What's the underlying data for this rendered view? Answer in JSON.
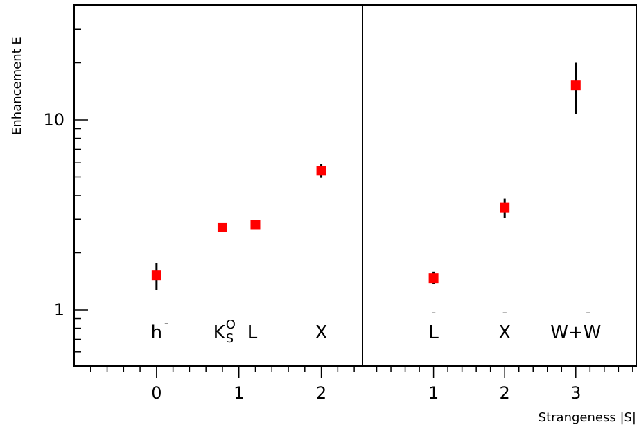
{
  "chart_data": {
    "type": "scatter",
    "title": "",
    "xlabel": "Strangeness |S|",
    "ylabel": "Enhancement E",
    "y_scale": "log",
    "ylim": [
      0.5,
      45
    ],
    "y_ticks": [
      "1",
      "10"
    ],
    "grid": false,
    "marker_color": "#ff0000",
    "errorbar_color": "#000000",
    "panels": [
      {
        "name": "particles",
        "xlim": [
          -1,
          2.5
        ],
        "x_tick_labels": [
          {
            "x": 0,
            "label": "0"
          },
          {
            "x": 1,
            "label": "1"
          },
          {
            "x": 2,
            "label": "2"
          }
        ],
        "points": [
          {
            "particle": "h-",
            "x": 0,
            "y": 1.52,
            "yerr_low": 0.25,
            "yerr_high": 0.25
          },
          {
            "particle": "K0S",
            "x": 0.8,
            "y": 2.72,
            "yerr_low": 0.1,
            "yerr_high": 0.1
          },
          {
            "particle": "Lambda",
            "x": 1.2,
            "y": 2.8,
            "yerr_low": 0.1,
            "yerr_high": 0.1
          },
          {
            "particle": "Xi",
            "x": 2,
            "y": 5.4,
            "yerr_low": 0.45,
            "yerr_high": 0.45
          }
        ],
        "category_labels": [
          {
            "x": 0,
            "text": "h",
            "sup": "-"
          },
          {
            "x": 1,
            "text": "K",
            "sup": "O",
            "sub": "S",
            "suffix": "L"
          },
          {
            "x": 2,
            "text": "X"
          }
        ]
      },
      {
        "name": "antiparticles",
        "xlim": [
          0,
          3.85
        ],
        "x_tick_labels": [
          {
            "x": 1,
            "label": "1"
          },
          {
            "x": 2,
            "label": "2"
          },
          {
            "x": 3,
            "label": "3"
          }
        ],
        "points": [
          {
            "particle": "anti-Lambda",
            "x": 1,
            "y": 1.47,
            "yerr_low": 0.1,
            "yerr_high": 0.12
          },
          {
            "particle": "anti-Xi",
            "x": 2,
            "y": 3.45,
            "yerr_low": 0.4,
            "yerr_high": 0.4
          },
          {
            "particle": "Omega+anti-Omega",
            "x": 3,
            "y": 15.2,
            "yerr_low": 4.5,
            "yerr_high": 4.8
          }
        ],
        "category_labels": [
          {
            "x": 1,
            "text": "L",
            "bar": "¯"
          },
          {
            "x": 2,
            "text": "X",
            "bar": "¯"
          },
          {
            "x": 3,
            "text": "W+W",
            "bar": "¯"
          }
        ]
      }
    ]
  }
}
